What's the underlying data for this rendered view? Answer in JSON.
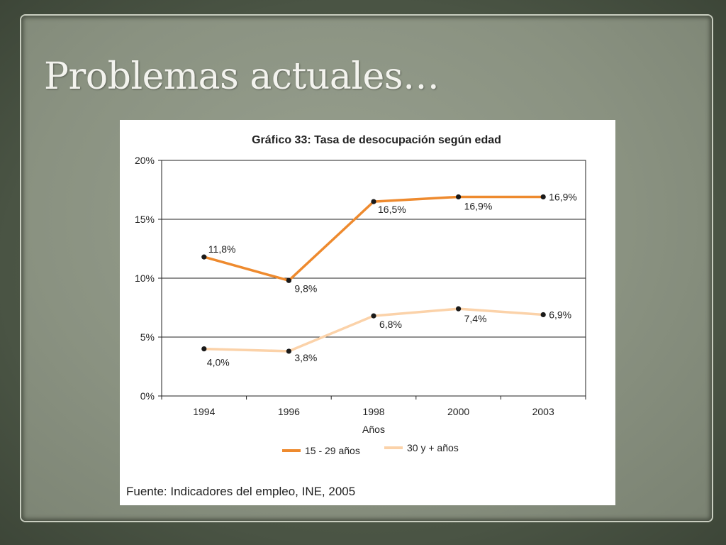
{
  "slide": {
    "title": "Problemas actuales…"
  },
  "colors": {
    "series_young": "#ee8a2e",
    "series_old": "#fbd2a9",
    "point": "#1a1a1a"
  },
  "chart_data": {
    "type": "line",
    "title": "Gráfico 33: Tasa de desocupación según edad",
    "xlabel": "Años",
    "ylabel": "",
    "categories": [
      "1994",
      "1996",
      "1998",
      "2000",
      "2003"
    ],
    "yticks": [
      "0%",
      "5%",
      "10%",
      "15%",
      "20%"
    ],
    "ylim": [
      0,
      20
    ],
    "grid": true,
    "legend_position": "bottom",
    "series": [
      {
        "name": "15 - 29 años",
        "values": [
          11.8,
          9.8,
          16.5,
          16.9,
          16.9
        ],
        "labels": [
          "11,8%",
          "9,8%",
          "16,5%",
          "16,9%",
          "16,9%"
        ]
      },
      {
        "name": "30 y + años",
        "values": [
          4.0,
          3.8,
          6.8,
          7.4,
          6.9
        ],
        "labels": [
          "4,0%",
          "3,8%",
          "6,8%",
          "7,4%",
          "6,9%"
        ]
      }
    ],
    "source": "Fuente: Indicadores del empleo, INE, 2005"
  }
}
